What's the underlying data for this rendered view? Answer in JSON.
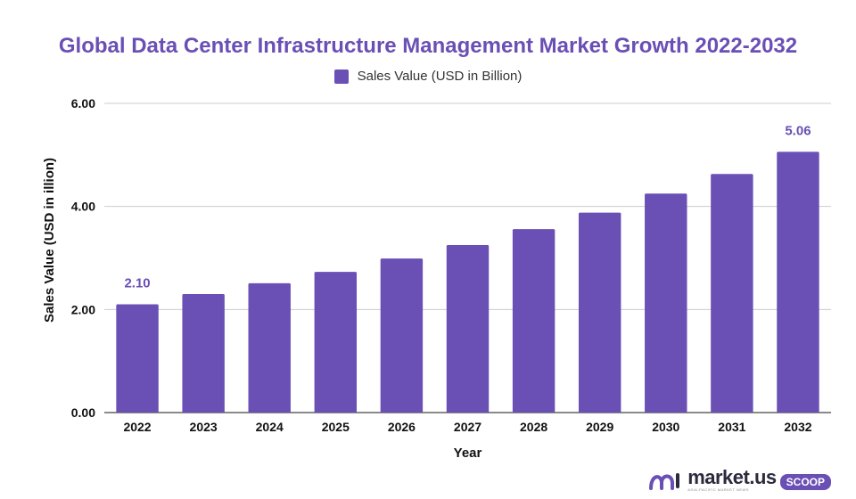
{
  "chart_data": {
    "type": "bar",
    "title": "Global Data Center Infrastructure Management Market Growth 2022-2032",
    "xlabel": "Year",
    "ylabel": "Sales Value (USD in illion)",
    "ylim": [
      0,
      6
    ],
    "yticks": [
      "0.00",
      "2.00",
      "4.00",
      "6.00"
    ],
    "grid": true,
    "legend_position": "top-center",
    "categories": [
      "2022",
      "2023",
      "2024",
      "2025",
      "2026",
      "2027",
      "2028",
      "2029",
      "2030",
      "2031",
      "2032"
    ],
    "series": [
      {
        "name": "Sales Value (USD in Billion)",
        "color": "#6a4fb5",
        "values": [
          2.1,
          2.3,
          2.51,
          2.73,
          2.99,
          3.25,
          3.56,
          3.88,
          4.25,
          4.63,
          5.06
        ]
      }
    ],
    "data_labels": [
      {
        "category": "2022",
        "text": "2.10"
      },
      {
        "category": "2032",
        "text": "5.06"
      }
    ]
  },
  "branding": {
    "logo_text": "market.us",
    "logo_tagline": "ASIA-PACIFIC MARKET NEWS",
    "logo_badge": "SCOOP"
  },
  "colors": {
    "accent": "#6a4fb5",
    "gridline": "#cccccc",
    "axis": "#444444"
  }
}
